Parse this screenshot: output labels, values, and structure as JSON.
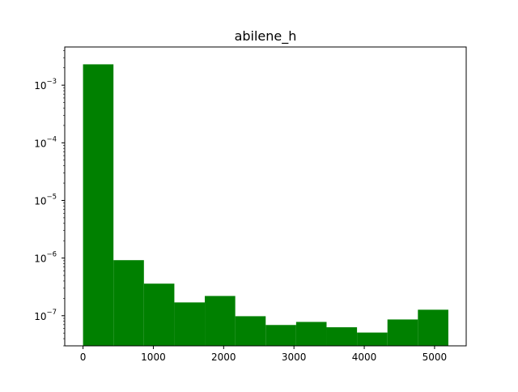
{
  "chart_data": {
    "type": "bar",
    "title": "abilene_h",
    "xlabel": "",
    "ylabel": "",
    "yscale": "log",
    "xlim": [
      -260,
      5450
    ],
    "ylim": [
      3e-08,
      0.0046
    ],
    "x_ticks": [
      {
        "value": 0,
        "label": "0"
      },
      {
        "value": 1000,
        "label": "1000"
      },
      {
        "value": 2000,
        "label": "2000"
      },
      {
        "value": 3000,
        "label": "3000"
      },
      {
        "value": 4000,
        "label": "4000"
      },
      {
        "value": 5000,
        "label": "5000"
      }
    ],
    "y_ticks": [
      {
        "value": 1e-07,
        "base": "10",
        "exp": "−7"
      },
      {
        "value": 1e-06,
        "base": "10",
        "exp": "−6"
      },
      {
        "value": 1e-05,
        "base": "10",
        "exp": "−5"
      },
      {
        "value": 0.0001,
        "base": "10",
        "exp": "−4"
      },
      {
        "value": 0.001,
        "base": "10",
        "exp": "−3"
      }
    ],
    "bin_edges": [
      0,
      433,
      866,
      1299,
      1732,
      2165,
      2598,
      3031,
      3464,
      3897,
      4330,
      4763,
      5196
    ],
    "values": [
      0.0023,
      9.2e-07,
      3.6e-07,
      1.7e-07,
      2.2e-07,
      9.8e-08,
      6.9e-08,
      7.8e-08,
      6.3e-08,
      5.1e-08,
      8.6e-08,
      1.27e-07
    ],
    "bar_color": "#008000",
    "grid": false,
    "legend": "none"
  }
}
